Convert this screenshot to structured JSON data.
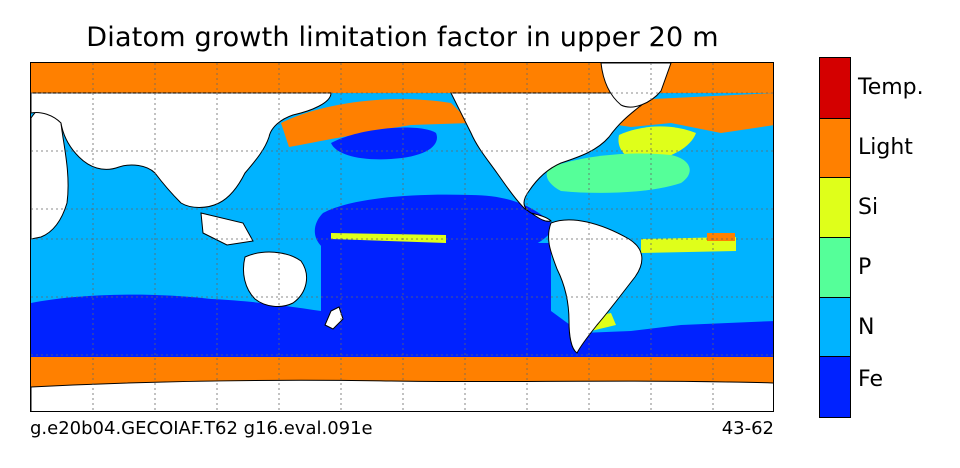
{
  "title": "Diatom growth limitation factor in upper 20 m",
  "footer": {
    "case_name": "g.e20b04.GECOIAF.T62 g16.eval.091e",
    "years": "43-62"
  },
  "colors": {
    "temp": "#d40000",
    "light": "#ff8000",
    "si": "#dfff1a",
    "p": "#55ff99",
    "n": "#00b3ff",
    "fe": "#0022ff",
    "land": "#ffffff"
  },
  "colorbar": {
    "categories": [
      {
        "label": "Temp.",
        "color_key": "temp"
      },
      {
        "label": "Light",
        "color_key": "light"
      },
      {
        "label": "Si",
        "color_key": "si"
      },
      {
        "label": "P",
        "color_key": "p"
      },
      {
        "label": "N",
        "color_key": "n"
      },
      {
        "label": "Fe",
        "color_key": "fe"
      }
    ]
  }
}
